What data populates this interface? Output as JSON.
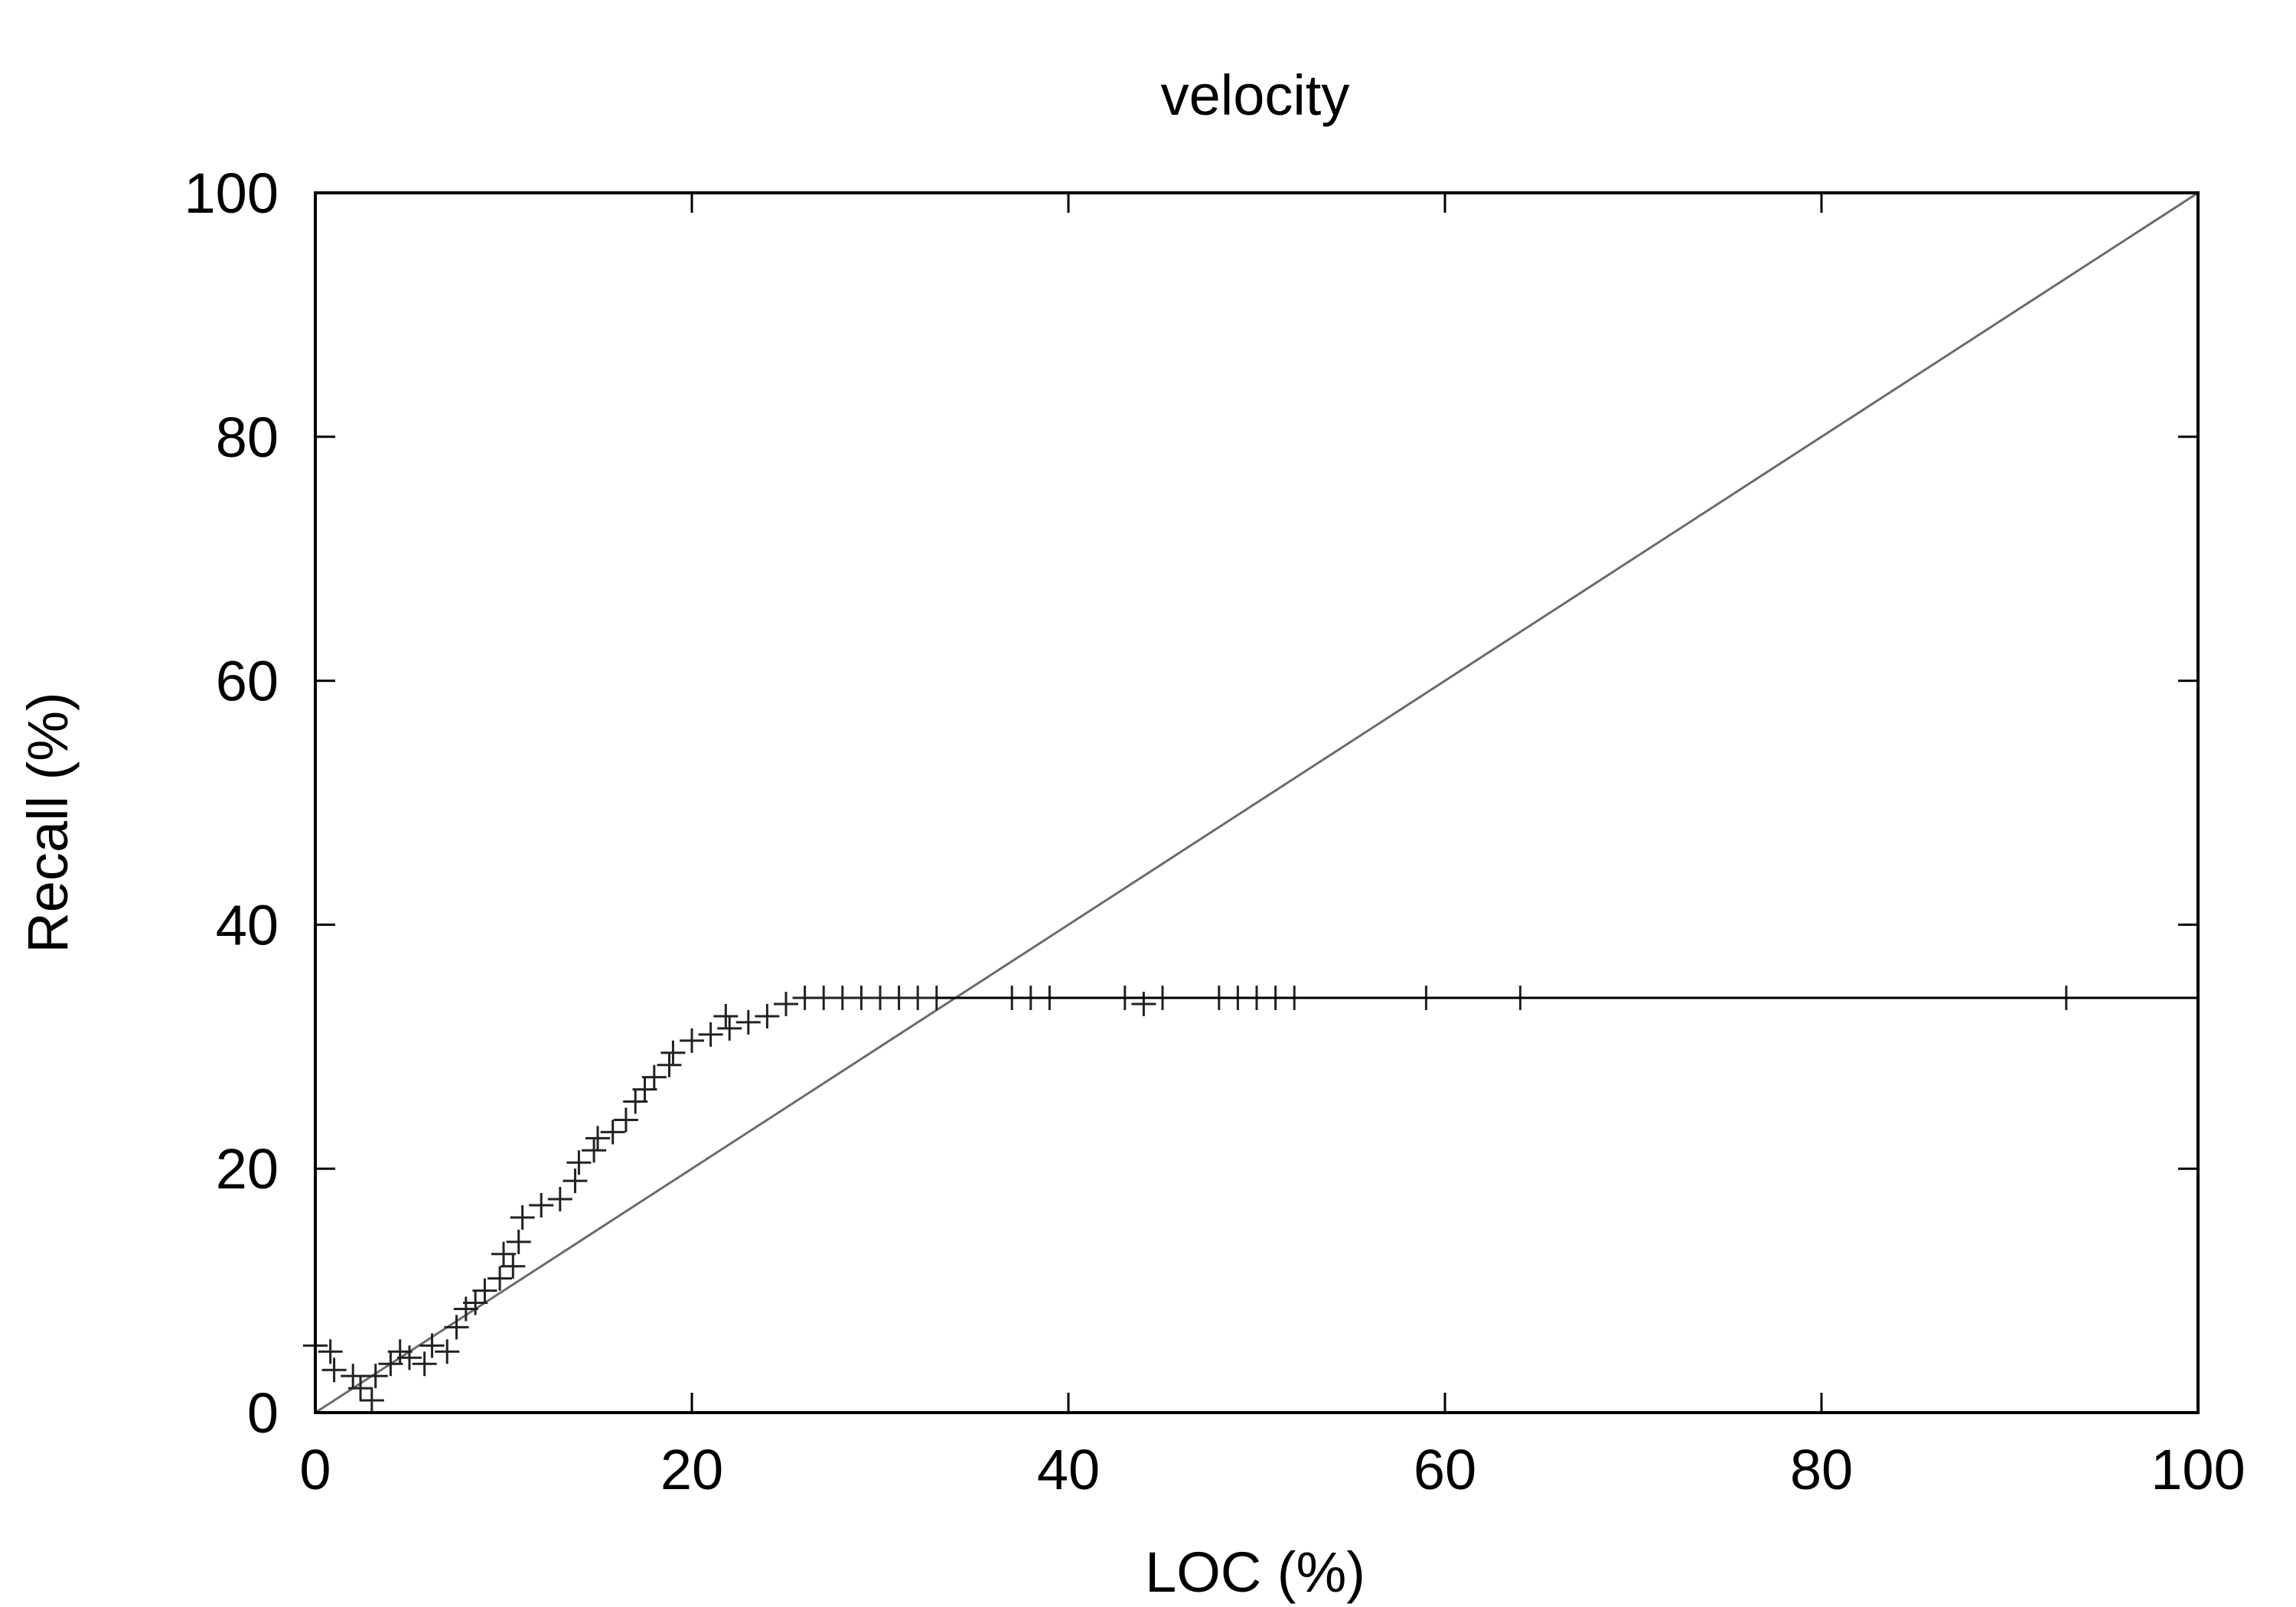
{
  "chart_data": {
    "type": "scatter",
    "title": "velocity",
    "xlabel": "LOC (%)",
    "ylabel": "Recall (%)",
    "xlim": [
      0,
      100
    ],
    "ylim": [
      0,
      100
    ],
    "xticks": [
      0,
      20,
      40,
      60,
      80,
      100
    ],
    "yticks": [
      0,
      20,
      40,
      60,
      80,
      100
    ],
    "grid": false,
    "legend": "none",
    "reference_line": {
      "from": [
        0,
        0
      ],
      "to": [
        100,
        100
      ],
      "color": "#6b6b6b"
    },
    "series": [
      {
        "marker": "plus",
        "color": "#222222",
        "x": [
          0,
          0.8,
          1,
          2,
          2.4,
          3,
          3.2,
          4,
          4.5,
          5,
          5.8,
          6.2,
          7,
          7.5,
          8,
          8.5,
          9,
          9.8,
          10,
          10.5,
          10.8,
          11,
          12,
          13,
          13.8,
          14,
          14.8,
          15,
          15.8,
          16.5,
          17,
          17.5,
          18,
          18.8,
          19,
          20,
          21,
          21.8,
          22,
          23,
          24,
          25,
          26,
          27,
          28,
          29,
          30,
          31,
          32,
          33,
          37,
          38,
          39,
          43,
          44,
          45,
          48,
          49,
          50,
          51,
          52,
          59,
          64,
          93
        ],
        "y": [
          5.5,
          5,
          3.5,
          3,
          2,
          1,
          3,
          4,
          5,
          4.5,
          4,
          5.5,
          5,
          7,
          8.5,
          9,
          10,
          11,
          13,
          12,
          14,
          16,
          17,
          17.5,
          19,
          20.5,
          21.5,
          22.5,
          23,
          24,
          25.5,
          26.5,
          27.5,
          28.5,
          29.5,
          30.5,
          31,
          32.5,
          31.5,
          32,
          32.5,
          33.5,
          34,
          34,
          34,
          34,
          34,
          34,
          34,
          34,
          34,
          34,
          34,
          34,
          33.5,
          34,
          34,
          34,
          34,
          34,
          34,
          34,
          34,
          34
        ]
      },
      {
        "style": "line",
        "color": "#000000",
        "x": [
          33,
          100
        ],
        "y": [
          34,
          34
        ]
      }
    ]
  }
}
